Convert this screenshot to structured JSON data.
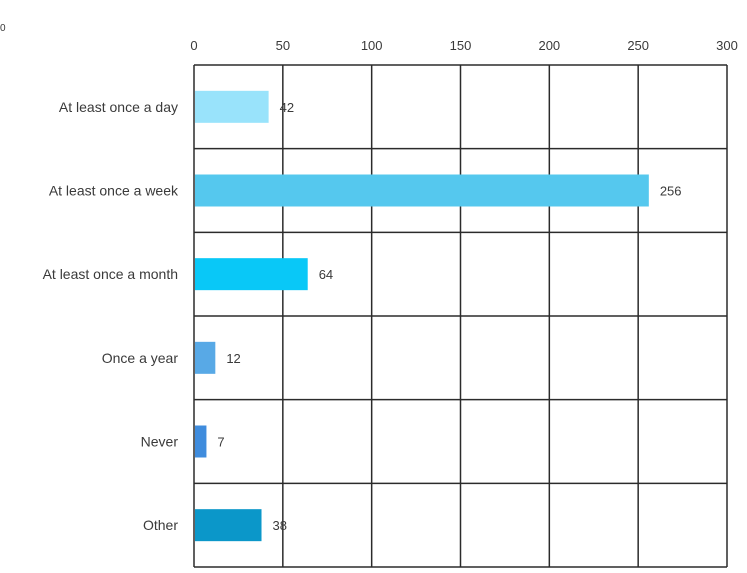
{
  "chart_data": {
    "type": "bar",
    "orientation": "horizontal",
    "categories": [
      "At least once a day",
      "At least once a week",
      "At least once a month",
      "Once a year",
      "Never",
      "Other"
    ],
    "values": [
      42,
      256,
      64,
      12,
      7,
      38
    ],
    "value_labels": [
      "42",
      "256",
      "64",
      "12",
      "7",
      "38"
    ],
    "xlim": [
      0,
      300
    ],
    "x_ticks": [
      0,
      50,
      100,
      150,
      200,
      250,
      300
    ],
    "x_tick_labels": [
      "0",
      "50",
      "100",
      "150",
      "200",
      "250",
      "300"
    ],
    "x_axis_position": "top",
    "grid": true,
    "colors": [
      "#99e3fb",
      "#55c8ee",
      "#09c8f7",
      "#58a9e6",
      "#3f8cdd",
      "#0b97c9"
    ],
    "corner_mark": "0",
    "title": "",
    "xlabel": "",
    "ylabel": ""
  }
}
